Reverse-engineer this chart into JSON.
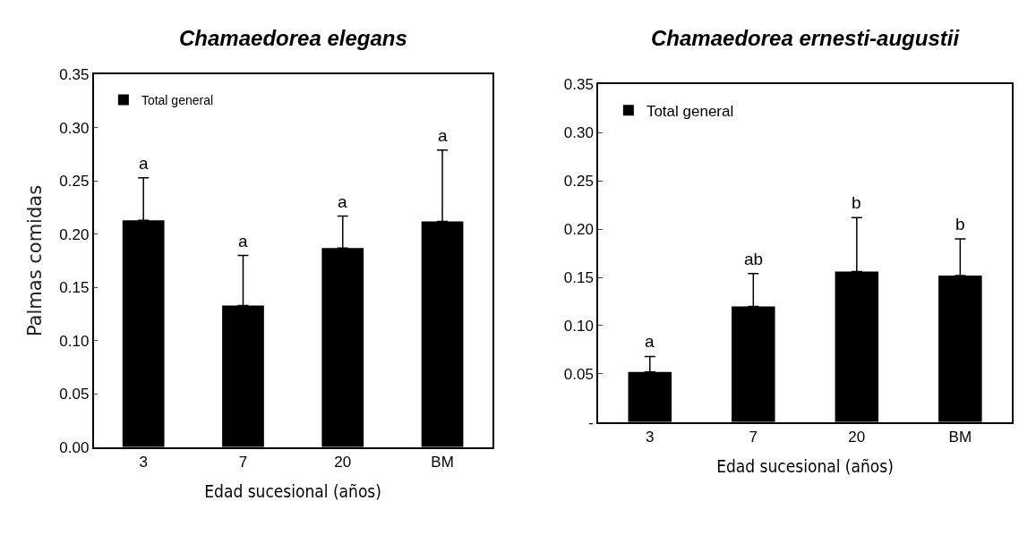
{
  "chart_data": [
    {
      "type": "bar",
      "title": "Chamaedorea elegans",
      "xlabel": "Edad sucesional (años)",
      "ylabel": "Palmas comidas",
      "categories": [
        "3",
        "7",
        "20",
        "BM"
      ],
      "series": [
        {
          "name": "Total general",
          "color": "#000000",
          "values": [
            0.213,
            0.133,
            0.187,
            0.212
          ],
          "errors": [
            [
              0.213,
              0.253
            ],
            [
              0.133,
              0.18
            ],
            [
              0.187,
              0.217
            ],
            [
              0.212,
              0.279
            ]
          ]
        }
      ],
      "ylim": [
        0,
        0.35
      ],
      "yticks": [
        {
          "value": 0,
          "label": "0.00"
        },
        {
          "value": 0.05,
          "label": "0.05"
        },
        {
          "value": 0.1,
          "label": "0.10"
        },
        {
          "value": 0.15,
          "label": "0.15"
        },
        {
          "value": 0.2,
          "label": "0.20"
        },
        {
          "value": 0.25,
          "label": "0.25"
        },
        {
          "value": 0.3,
          "label": "0.30"
        },
        {
          "value": 0.35,
          "label": "0.35"
        }
      ],
      "annotations": [
        {
          "text": "a",
          "x": "3",
          "y": 0.253
        },
        {
          "text": "a",
          "x": "7",
          "y": 0.18
        },
        {
          "text": "a",
          "x": "20",
          "y": 0.217
        },
        {
          "text": "a",
          "x": "BM",
          "y": 0.279
        }
      ],
      "legend": "top left"
    },
    {
      "type": "bar",
      "title": "Chamaedorea ernesti-augustii",
      "xlabel": "Edad sucesional (años)",
      "categories": [
        "3",
        "7",
        "20",
        "BM"
      ],
      "series": [
        {
          "name": "Total general",
          "color": "#000000",
          "values": [
            0.052,
            0.12,
            0.156,
            0.152
          ],
          "errors": [
            [
              0.052,
              0.068
            ],
            [
              0.12,
              0.154
            ],
            [
              0.156,
              0.212
            ],
            [
              0.152,
              0.19
            ]
          ]
        }
      ],
      "ylim": [
        0,
        0.35
      ],
      "yticks": [
        {
          "value": 0,
          "label": "-"
        },
        {
          "value": 0.05,
          "label": "0.05"
        },
        {
          "value": 0.1,
          "label": "0.10"
        },
        {
          "value": 0.15,
          "label": "0.15"
        },
        {
          "value": 0.2,
          "label": "0.20"
        },
        {
          "value": 0.25,
          "label": "0.25"
        },
        {
          "value": 0.3,
          "label": "0.30"
        },
        {
          "value": 0.35,
          "label": "0.35"
        }
      ],
      "annotations": [
        {
          "text": "a",
          "x": "3",
          "y": 0.068
        },
        {
          "text": "ab",
          "x": "7",
          "y": 0.154
        },
        {
          "text": "b",
          "x": "20",
          "y": 0.212
        },
        {
          "text": "b",
          "x": "BM",
          "y": 0.19
        }
      ],
      "legend": "top left"
    }
  ]
}
